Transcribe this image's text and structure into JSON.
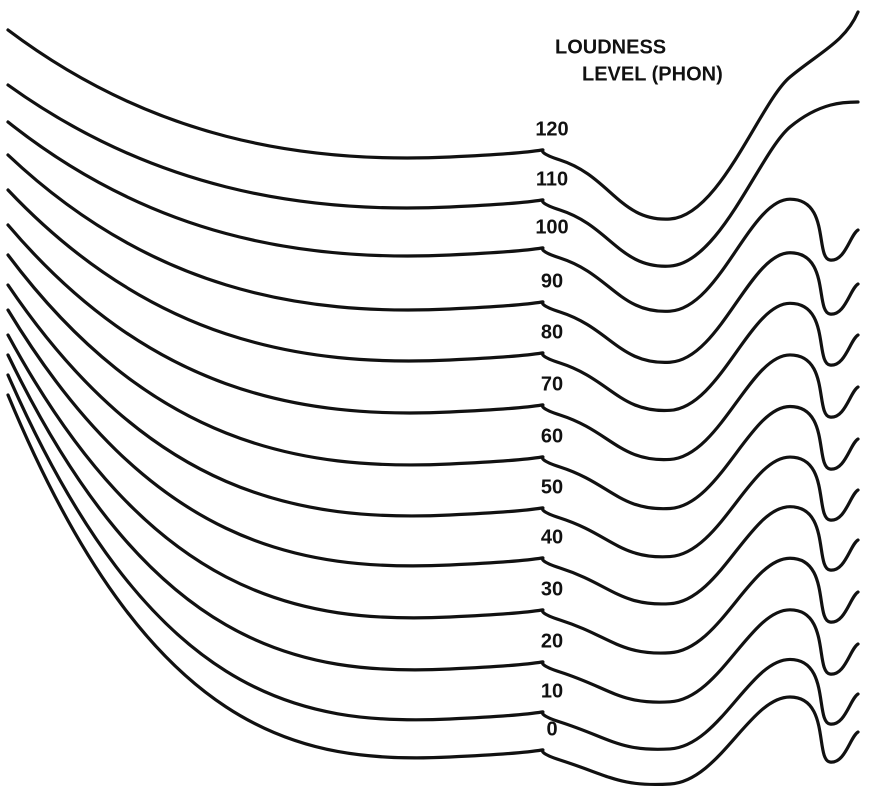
{
  "title": {
    "line1": "LOUDNESS",
    "line2": "LEVEL (PHON)"
  },
  "curve_labels": [
    "120",
    "110",
    "100",
    "90",
    "80",
    "70",
    "60",
    "50",
    "40",
    "30",
    "20",
    "10",
    "0"
  ]
}
